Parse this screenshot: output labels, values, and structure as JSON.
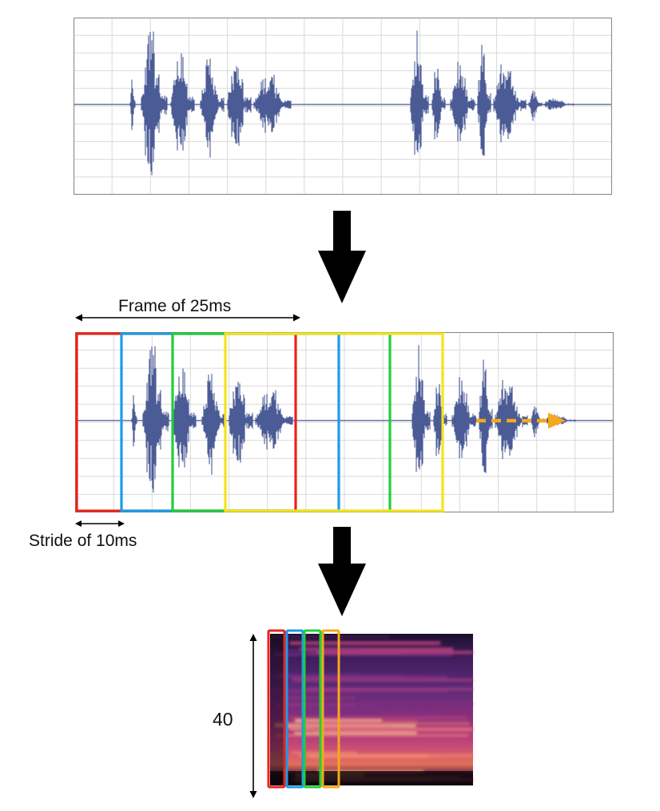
{
  "labels": {
    "frame": "Frame of 25ms",
    "stride": "Stride of 10ms",
    "mel_bins": "40"
  },
  "colors": {
    "waveform": "#4b5b96",
    "grid": "#d9d9d9",
    "panel_border": "#8a8a8a",
    "arrow": "#000000",
    "frame_red": "#e8221b",
    "frame_blue": "#1a9be8",
    "frame_green": "#1fcf3a",
    "frame_yellow": "#f5e31a",
    "frame_orange": "#f5a81a",
    "direction_arrow": "#f5a81a"
  },
  "icons": {
    "flow_arrow": "down-arrow-icon",
    "frame_span": "double-arrow-icon",
    "stride_span": "double-arrow-icon",
    "slide_direction": "dashed-right-arrow-icon",
    "bins_span": "vertical-double-arrow-icon"
  }
}
